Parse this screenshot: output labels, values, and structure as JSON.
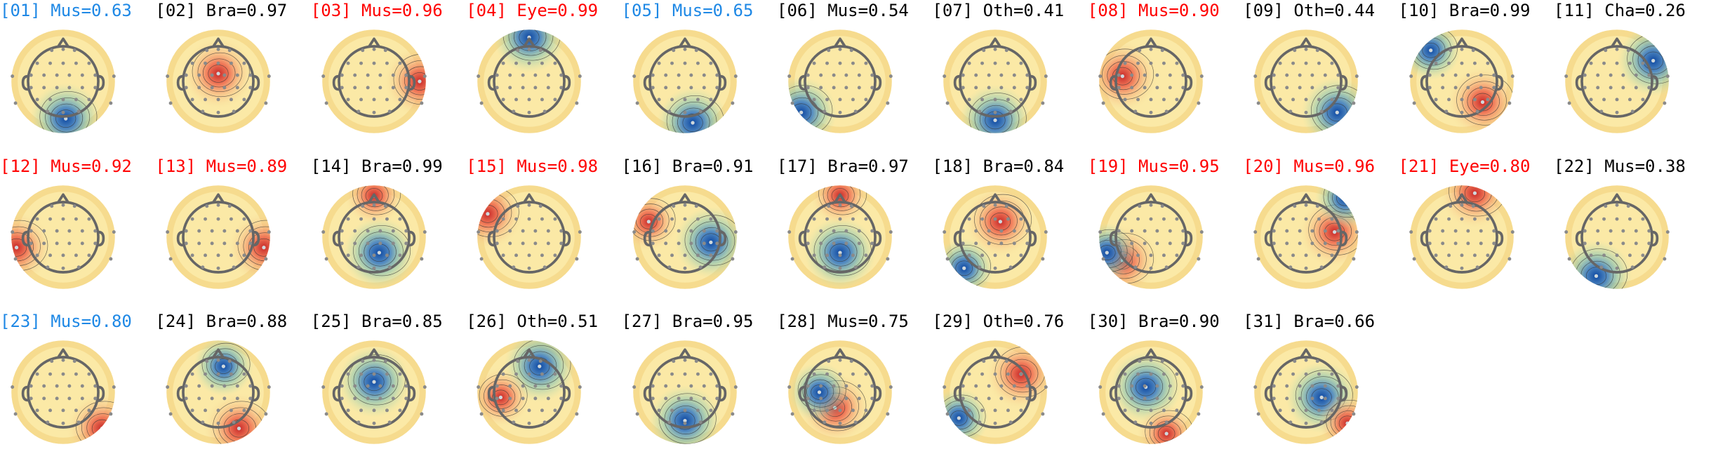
{
  "colors": {
    "default_title": "#000000",
    "red_title": "#ff0000",
    "blue_title": "#1e88e5",
    "map_warm": "#d32f2f",
    "map_cool": "#1565c0"
  },
  "components": [
    {
      "idx": "[01]",
      "cls": "Mus",
      "score": "0.63",
      "color": "blue",
      "hot": [
        0.05,
        -0.72,
        -1
      ],
      "hot2": null
    },
    {
      "idx": "[02]",
      "cls": "Bra",
      "score": "0.97",
      "color": "black",
      "hot": [
        0.0,
        0.15,
        1
      ],
      "hot2": null
    },
    {
      "idx": "[03]",
      "cls": "Mus",
      "score": "0.96",
      "color": "red",
      "hot": [
        0.88,
        0.0,
        1
      ],
      "hot2": null
    },
    {
      "idx": "[04]",
      "cls": "Eye",
      "score": "0.99",
      "color": "red",
      "hot": [
        0.0,
        0.85,
        -1
      ],
      "hot2": null
    },
    {
      "idx": "[05]",
      "cls": "Mus",
      "score": "0.65",
      "color": "blue",
      "hot": [
        0.15,
        -0.8,
        -1
      ],
      "hot2": null
    },
    {
      "idx": "[06]",
      "cls": "Mus",
      "score": "0.54",
      "color": "black",
      "hot": [
        -0.75,
        -0.6,
        -1
      ],
      "hot2": null
    },
    {
      "idx": "[07]",
      "cls": "Oth",
      "score": "0.41",
      "color": "black",
      "hot": [
        0.0,
        -0.75,
        -1
      ],
      "hot2": null
    },
    {
      "idx": "[08]",
      "cls": "Mus",
      "score": "0.90",
      "color": "red",
      "hot": [
        -0.55,
        0.1,
        1
      ],
      "hot2": null
    },
    {
      "idx": "[09]",
      "cls": "Oth",
      "score": "0.44",
      "color": "black",
      "hot": [
        0.6,
        -0.6,
        -1
      ],
      "hot2": null
    },
    {
      "idx": "[10]",
      "cls": "Bra",
      "score": "0.99",
      "color": "black",
      "hot": [
        0.4,
        -0.4,
        1
      ],
      "hot2": [
        -0.6,
        0.6,
        -1
      ]
    },
    {
      "idx": "[11]",
      "cls": "Cha",
      "score": "0.26",
      "color": "black",
      "hot": [
        0.7,
        0.4,
        -1
      ],
      "hot2": null
    },
    {
      "idx": "[12]",
      "cls": "Mus",
      "score": "0.92",
      "color": "red",
      "hot": [
        -0.9,
        -0.2,
        1
      ],
      "hot2": null
    },
    {
      "idx": "[13]",
      "cls": "Mus",
      "score": "0.89",
      "color": "red",
      "hot": [
        0.88,
        -0.2,
        1
      ],
      "hot2": null
    },
    {
      "idx": "[14]",
      "cls": "Bra",
      "score": "0.99",
      "color": "black",
      "hot": [
        0.1,
        -0.3,
        -1
      ],
      "hot2": [
        0.0,
        0.8,
        1
      ]
    },
    {
      "idx": "[15]",
      "cls": "Mus",
      "score": "0.98",
      "color": "red",
      "hot": [
        -0.8,
        0.45,
        1
      ],
      "hot2": null
    },
    {
      "idx": "[16]",
      "cls": "Bra",
      "score": "0.91",
      "color": "black",
      "hot": [
        0.5,
        -0.1,
        -1
      ],
      "hot2": [
        -0.7,
        0.3,
        1
      ]
    },
    {
      "idx": "[17]",
      "cls": "Bra",
      "score": "0.97",
      "color": "black",
      "hot": [
        0.0,
        -0.3,
        -1
      ],
      "hot2": [
        0.0,
        0.8,
        1
      ]
    },
    {
      "idx": "[18]",
      "cls": "Bra",
      "score": "0.84",
      "color": "black",
      "hot": [
        0.1,
        0.3,
        1
      ],
      "hot2": [
        -0.6,
        -0.6,
        -1
      ]
    },
    {
      "idx": "[19]",
      "cls": "Mus",
      "score": "0.95",
      "color": "red",
      "hot": [
        -0.55,
        -0.45,
        1
      ],
      "hot2": [
        -0.85,
        -0.3,
        -1
      ]
    },
    {
      "idx": "[20]",
      "cls": "Mus",
      "score": "0.96",
      "color": "red",
      "hot": [
        0.55,
        0.1,
        1
      ],
      "hot2": [
        0.75,
        0.75,
        -1
      ]
    },
    {
      "idx": "[21]",
      "cls": "Eye",
      "score": "0.80",
      "color": "red",
      "hot": [
        0.25,
        0.85,
        1
      ],
      "hot2": null
    },
    {
      "idx": "[22]",
      "cls": "Mus",
      "score": "0.38",
      "color": "black",
      "hot": [
        -0.4,
        -0.75,
        -1
      ],
      "hot2": null
    },
    {
      "idx": "[23]",
      "cls": "Mus",
      "score": "0.80",
      "color": "blue",
      "hot": [
        0.75,
        -0.7,
        1
      ],
      "hot2": null
    },
    {
      "idx": "[24]",
      "cls": "Bra",
      "score": "0.88",
      "color": "black",
      "hot": [
        0.4,
        -0.7,
        1
      ],
      "hot2": [
        0.1,
        0.5,
        -1
      ]
    },
    {
      "idx": "[25]",
      "cls": "Bra",
      "score": "0.85",
      "color": "black",
      "hot": [
        0.0,
        0.2,
        -1
      ],
      "hot2": null
    },
    {
      "idx": "[26]",
      "cls": "Oth",
      "score": "0.51",
      "color": "black",
      "hot": [
        0.2,
        0.5,
        -1
      ],
      "hot2": [
        -0.55,
        -0.1,
        1
      ]
    },
    {
      "idx": "[27]",
      "cls": "Bra",
      "score": "0.95",
      "color": "black",
      "hot": [
        0.0,
        -0.55,
        -1
      ],
      "hot2": null
    },
    {
      "idx": "[28]",
      "cls": "Mus",
      "score": "0.75",
      "color": "black",
      "hot": [
        -0.1,
        -0.3,
        1
      ],
      "hot2": [
        -0.4,
        0.0,
        -1
      ]
    },
    {
      "idx": "[29]",
      "cls": "Oth",
      "score": "0.76",
      "color": "black",
      "hot": [
        0.5,
        0.35,
        1
      ],
      "hot2": [
        -0.7,
        -0.5,
        -1
      ]
    },
    {
      "idx": "[30]",
      "cls": "Bra",
      "score": "0.90",
      "color": "black",
      "hot": [
        -0.1,
        0.1,
        -1
      ],
      "hot2": [
        0.3,
        -0.8,
        1
      ]
    },
    {
      "idx": "[31]",
      "cls": "Bra",
      "score": "0.66",
      "color": "black",
      "hot": [
        0.3,
        -0.1,
        -1
      ],
      "hot2": [
        0.8,
        -0.6,
        1
      ]
    }
  ]
}
